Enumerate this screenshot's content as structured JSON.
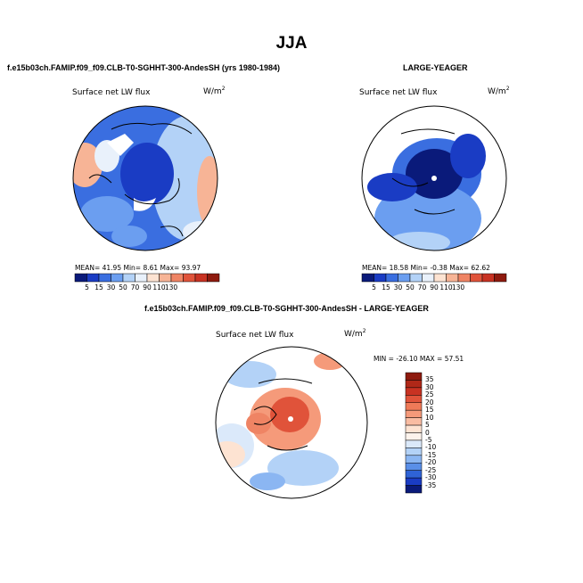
{
  "title": "JJA",
  "panels": [
    {
      "id": "p1",
      "header": "f.e15b03ch.FAMIP.f09_f09.CLB-T0-SGHHT-300-AndesSH (yrs 1980-1984)",
      "field_label": "Surface net LW flux",
      "units": "W/m",
      "stats": "MEAN=  41.95   Min=    8.61   Max=   93.97"
    },
    {
      "id": "p2",
      "header": "LARGE-YEAGER",
      "field_label": "Surface net LW flux",
      "units": "W/m",
      "stats": "MEAN=  18.58   Min=  -0.38   Max=   62.62"
    },
    {
      "id": "p3",
      "header": "f.e15b03ch.FAMIP.f09_f09.CLB-T0-SGHHT-300-AndesSH - LARGE-YEAGER",
      "field_label": "Surface net LW flux",
      "units": "W/m",
      "stats": "MIN = -26.10  MAX =  57.51"
    }
  ],
  "units_exponent": "2",
  "colorbar_abs": {
    "labels": [
      "5",
      "15",
      "30",
      "50",
      "70",
      "90",
      "110",
      "130"
    ],
    "colors": [
      "#0a1a7a",
      "#1a3cc4",
      "#3a6ee0",
      "#6b9ef0",
      "#b3d2f7",
      "#e9f1fb",
      "#fde3d2",
      "#f7b496",
      "#ef8464",
      "#e0533a",
      "#c83222",
      "#8e1a0e"
    ]
  },
  "colorbar_diff": {
    "labels": [
      "35",
      "30",
      "25",
      "20",
      "15",
      "10",
      "5",
      "0",
      "-5",
      "-10",
      "-15",
      "-20",
      "-25",
      "-30",
      "-35"
    ],
    "colors": [
      "#8e1a0e",
      "#b02818",
      "#c83222",
      "#e0533a",
      "#ef7a58",
      "#f59a7a",
      "#f9bca2",
      "#fde3d2",
      "#fdf3ec",
      "#dbe9fa",
      "#b3d2f7",
      "#8bb6f2",
      "#5a8fe8",
      "#2f63d6",
      "#1a3cc4",
      "#0a1a7a"
    ]
  }
}
